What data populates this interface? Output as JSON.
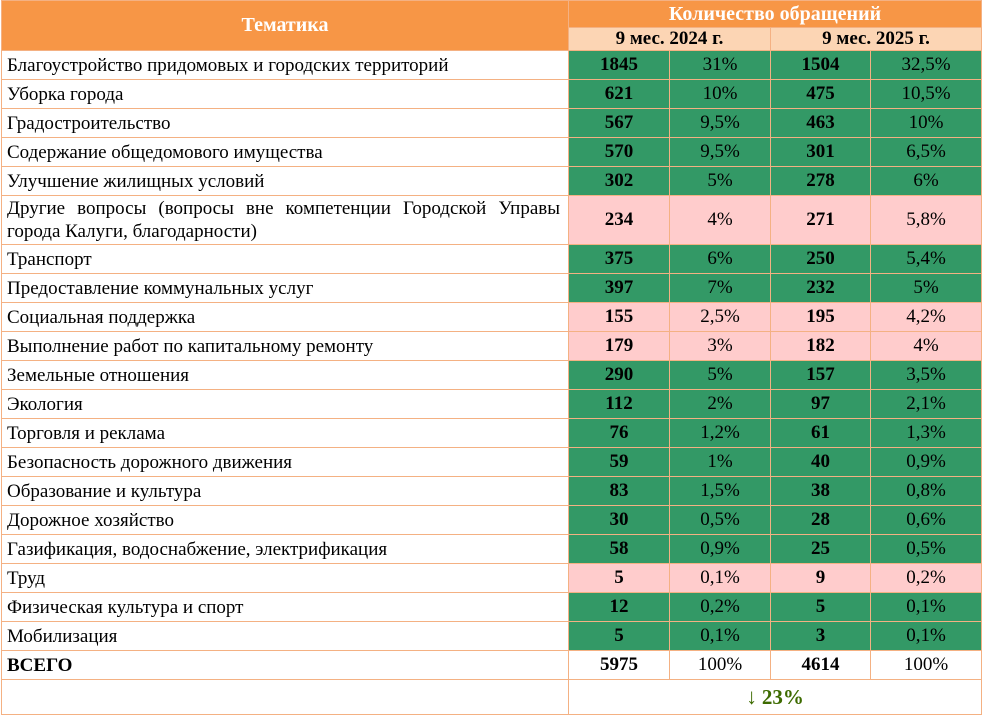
{
  "header": {
    "theme_label": "Тематика",
    "count_label": "Количество обращений",
    "period_2024": "9 мес. 2024 г.",
    "period_2025": "9 мес. 2025 г."
  },
  "colors": {
    "header": "#f79646",
    "subheader": "#fcd5b4",
    "green": "#339966",
    "pink": "#ffcccc",
    "border": "#f4b183",
    "trend": "#3d6b00"
  },
  "rows": [
    {
      "theme": "Благоустройство придомовых и городских территорий",
      "c2024": "1845",
      "p2024": "31%",
      "c2025": "1504",
      "p2025": "32,5%",
      "highlight": "green"
    },
    {
      "theme": "Уборка города",
      "c2024": "621",
      "p2024": "10%",
      "c2025": "475",
      "p2025": "10,5%",
      "highlight": "green"
    },
    {
      "theme": "Градостроительство",
      "c2024": "567",
      "p2024": "9,5%",
      "c2025": "463",
      "p2025": "10%",
      "highlight": "green"
    },
    {
      "theme": "Содержание общедомового имущества",
      "c2024": "570",
      "p2024": "9,5%",
      "c2025": "301",
      "p2025": "6,5%",
      "highlight": "green"
    },
    {
      "theme": "Улучшение жилищных условий",
      "c2024": "302",
      "p2024": "5%",
      "c2025": "278",
      "p2025": "6%",
      "highlight": "green"
    },
    {
      "theme": "Другие вопросы (вопросы вне компетенции Городской Управы города Калуги, благодарности)",
      "c2024": "234",
      "p2024": "4%",
      "c2025": "271",
      "p2025": "5,8%",
      "highlight": "pink"
    },
    {
      "theme": "Транспорт",
      "c2024": "375",
      "p2024": "6%",
      "c2025": "250",
      "p2025": "5,4%",
      "highlight": "green"
    },
    {
      "theme": "Предоставление коммунальных услуг",
      "c2024": "397",
      "p2024": "7%",
      "c2025": "232",
      "p2025": "5%",
      "highlight": "green"
    },
    {
      "theme": "Социальная поддержка",
      "c2024": "155",
      "p2024": "2,5%",
      "c2025": "195",
      "p2025": "4,2%",
      "highlight": "pink"
    },
    {
      "theme": "Выполнение работ по капитальному ремонту",
      "c2024": "179",
      "p2024": "3%",
      "c2025": "182",
      "p2025": "4%",
      "highlight": "pink"
    },
    {
      "theme": "Земельные отношения",
      "c2024": "290",
      "p2024": "5%",
      "c2025": "157",
      "p2025": "3,5%",
      "highlight": "green"
    },
    {
      "theme": "Экология",
      "c2024": "112",
      "p2024": "2%",
      "c2025": "97",
      "p2025": "2,1%",
      "highlight": "green"
    },
    {
      "theme": "Торговля и реклама",
      "c2024": "76",
      "p2024": "1,2%",
      "c2025": "61",
      "p2025": "1,3%",
      "highlight": "green"
    },
    {
      "theme": "Безопасность дорожного движения",
      "c2024": "59",
      "p2024": "1%",
      "c2025": "40",
      "p2025": "0,9%",
      "highlight": "green"
    },
    {
      "theme": "Образование и культура",
      "c2024": "83",
      "p2024": "1,5%",
      "c2025": "38",
      "p2025": "0,8%",
      "highlight": "green"
    },
    {
      "theme": "Дорожное хозяйство",
      "c2024": "30",
      "p2024": "0,5%",
      "c2025": "28",
      "p2025": "0,6%",
      "highlight": "green"
    },
    {
      "theme": "Газификация, водоснабжение, электрификация",
      "c2024": "58",
      "p2024": "0,9%",
      "c2025": "25",
      "p2025": "0,5%",
      "highlight": "green"
    },
    {
      "theme": "Труд",
      "c2024": "5",
      "p2024": "0,1%",
      "c2025": "9",
      "p2025": "0,2%",
      "highlight": "pink"
    },
    {
      "theme": "Физическая культура и спорт",
      "c2024": "12",
      "p2024": "0,2%",
      "c2025": "5",
      "p2025": "0,1%",
      "highlight": "green"
    },
    {
      "theme": "Мобилизация",
      "c2024": "5",
      "p2024": "0,1%",
      "c2025": "3",
      "p2025": "0,1%",
      "highlight": "green"
    }
  ],
  "total": {
    "theme": "ВСЕГО",
    "c2024": "5975",
    "p2024": "100%",
    "c2025": "4614",
    "p2025": "100%"
  },
  "trend": {
    "arrow": "↓",
    "icon": "arrow-down-icon",
    "value": "23%"
  }
}
